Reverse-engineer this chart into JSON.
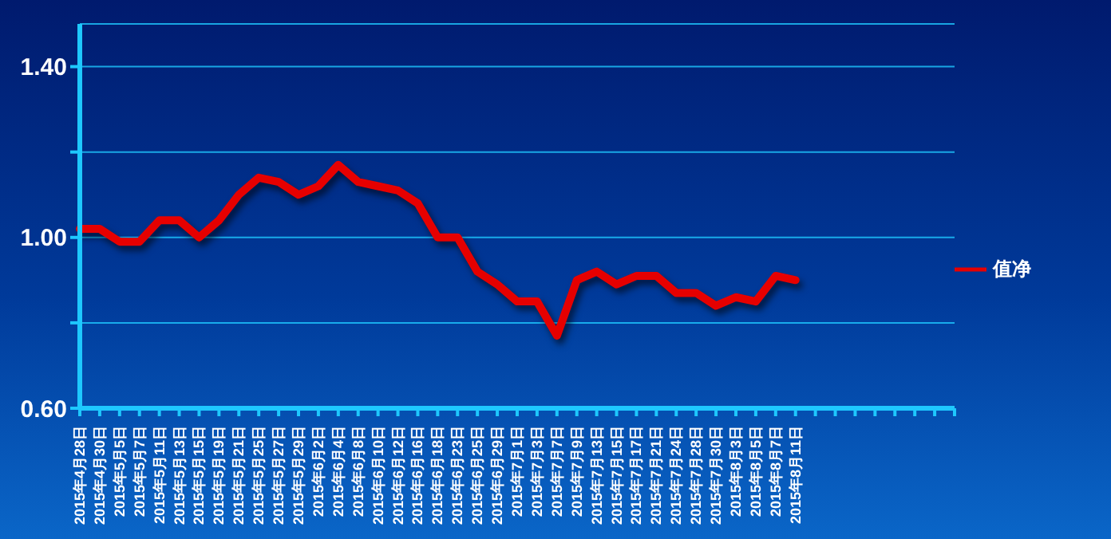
{
  "chart_data": {
    "type": "line",
    "categories": [
      "2015年4月28日",
      "2015年4月30日",
      "2015年5月5日",
      "2015年5月7日",
      "2015年5月11日",
      "2015年5月13日",
      "2015年5月15日",
      "2015年5月19日",
      "2015年5月21日",
      "2015年5月25日",
      "2015年5月27日",
      "2015年5月29日",
      "2015年6月2日",
      "2015年6月4日",
      "2015年6月8日",
      "2015年6月10日",
      "2015年6月12日",
      "2015年6月16日",
      "2015年6月18日",
      "2015年6月23日",
      "2015年6月25日",
      "2015年6月29日",
      "2015年7月1日",
      "2015年7月3日",
      "2015年7月7日",
      "2015年7月9日",
      "2015年7月13日",
      "2015年7月15日",
      "2015年7月17日",
      "2015年7月21日",
      "2015年7月24日",
      "2015年7月28日",
      "2015年7月30日",
      "2015年8月3日",
      "2015年8月5日",
      "2015年8月7日",
      "2015年8月11日",
      null,
      null,
      null,
      null,
      null,
      null,
      null,
      null
    ],
    "series": [
      {
        "name": "值净",
        "color": "#e60000",
        "values": [
          1.02,
          1.02,
          0.99,
          0.99,
          1.04,
          1.04,
          1.0,
          1.04,
          1.1,
          1.14,
          1.13,
          1.1,
          1.12,
          1.17,
          1.13,
          1.12,
          1.11,
          1.08,
          1.0,
          1.0,
          0.92,
          0.89,
          0.85,
          0.85,
          0.77,
          0.9,
          0.92,
          0.89,
          0.91,
          0.91,
          0.87,
          0.87,
          0.84,
          0.86,
          0.85,
          0.91,
          0.9,
          null,
          null,
          null,
          null,
          null,
          null,
          null,
          null
        ]
      }
    ],
    "ylim": [
      0.6,
      1.5
    ],
    "yticks": [
      {
        "value": 0.6,
        "label": "0.60"
      },
      {
        "value": 0.8,
        "label": null
      },
      {
        "value": 1.0,
        "label": "1.00"
      },
      {
        "value": 1.2,
        "label": null
      },
      {
        "value": 1.4,
        "label": "1.40"
      }
    ],
    "grid": "y",
    "legend": "right",
    "marker": "none",
    "line_style": "solid"
  }
}
